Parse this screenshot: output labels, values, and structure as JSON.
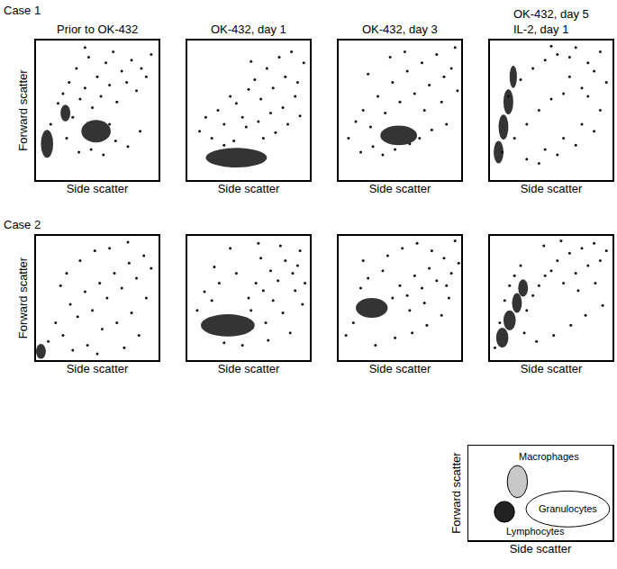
{
  "chart_data": [
    {
      "type": "scatter",
      "case": "Case 1",
      "title": "Prior to OK-432",
      "x_label": "Side scatter",
      "y_label": "Forward scatter",
      "xlim": [
        0,
        100
      ],
      "ylim": [
        0,
        100
      ],
      "tick_labels": false,
      "color": "#111111",
      "x": [
        12,
        18,
        22,
        27,
        30,
        33,
        36,
        40,
        43,
        46,
        50,
        53,
        57,
        60,
        63,
        66,
        70,
        74,
        78,
        82,
        86,
        90,
        94,
        35,
        45,
        55,
        65,
        75,
        85,
        25,
        40,
        60
      ],
      "y": [
        40,
        55,
        62,
        70,
        45,
        80,
        58,
        66,
        88,
        52,
        74,
        60,
        84,
        68,
        92,
        56,
        78,
        70,
        86,
        64,
        80,
        74,
        90,
        20,
        22,
        18,
        28,
        24,
        35,
        30,
        95,
        40
      ],
      "clusters": [
        {
          "x": 9,
          "y": 26,
          "rx": 5,
          "ry": 10
        },
        {
          "x": 24,
          "y": 48,
          "rx": 4,
          "ry": 6
        },
        {
          "x": 49,
          "y": 35,
          "rx": 12,
          "ry": 8
        }
      ]
    },
    {
      "type": "scatter",
      "title": "OK-432, day 1",
      "x_label": "Side scatter",
      "xlim": [
        0,
        100
      ],
      "ylim": [
        0,
        100
      ],
      "tick_labels": false,
      "color": "#111111",
      "x": [
        10,
        15,
        20,
        25,
        30,
        35,
        40,
        45,
        50,
        55,
        60,
        65,
        70,
        75,
        80,
        85,
        90,
        95,
        48,
        58,
        68,
        78,
        88,
        38,
        62,
        72,
        82,
        92,
        30,
        52
      ],
      "y": [
        35,
        45,
        30,
        50,
        40,
        60,
        55,
        45,
        65,
        72,
        58,
        80,
        66,
        88,
        74,
        92,
        70,
        84,
        38,
        42,
        48,
        52,
        60,
        28,
        30,
        34,
        40,
        46,
        25,
        85
      ],
      "clusters": [
        {
          "x": 40,
          "y": 16,
          "rx": 25,
          "ry": 7
        }
      ]
    },
    {
      "type": "scatter",
      "title": "OK-432, day 3",
      "x_label": "Side scatter",
      "xlim": [
        0,
        100
      ],
      "ylim": [
        0,
        100
      ],
      "tick_labels": false,
      "color": "#111111",
      "x": [
        8,
        14,
        20,
        26,
        32,
        38,
        44,
        50,
        56,
        62,
        68,
        74,
        80,
        86,
        92,
        97,
        18,
        28,
        36,
        46,
        58,
        66,
        76,
        88,
        24,
        42,
        54,
        70,
        84,
        95
      ],
      "y": [
        30,
        42,
        50,
        38,
        60,
        48,
        70,
        56,
        78,
        62,
        84,
        68,
        90,
        74,
        80,
        64,
        20,
        24,
        18,
        22,
        26,
        30,
        36,
        40,
        76,
        88,
        92,
        50,
        56,
        95
      ],
      "clusters": [
        {
          "x": 49,
          "y": 32,
          "rx": 15,
          "ry": 7
        }
      ]
    },
    {
      "type": "scatter",
      "title": "OK-432, day 5\nIL-2, day 1",
      "x_label": "Side scatter",
      "xlim": [
        0,
        100
      ],
      "ylim": [
        0,
        100
      ],
      "tick_labels": false,
      "color": "#111111",
      "x": [
        10,
        15,
        20,
        25,
        30,
        35,
        40,
        45,
        50,
        55,
        60,
        65,
        70,
        75,
        80,
        85,
        90,
        95,
        30,
        45,
        60,
        75,
        90,
        40,
        55,
        70,
        85,
        50,
        65,
        80
      ],
      "y": [
        20,
        60,
        30,
        72,
        40,
        80,
        50,
        86,
        58,
        90,
        62,
        74,
        95,
        66,
        84,
        78,
        92,
        70,
        15,
        22,
        30,
        40,
        50,
        12,
        18,
        25,
        35,
        96,
        88,
        60
      ],
      "clusters": [
        {
          "x": 7,
          "y": 20,
          "rx": 4,
          "ry": 8
        },
        {
          "x": 11,
          "y": 38,
          "rx": 4,
          "ry": 9
        },
        {
          "x": 15,
          "y": 56,
          "rx": 4,
          "ry": 9
        },
        {
          "x": 19,
          "y": 74,
          "rx": 3,
          "ry": 8
        }
      ]
    },
    {
      "type": "scatter",
      "case": "Case 2",
      "x_label": "Side scatter",
      "y_label": "Forward scatter",
      "xlim": [
        0,
        100
      ],
      "ylim": [
        0,
        100
      ],
      "tick_labels": false,
      "color": "#111111",
      "x": [
        10,
        16,
        22,
        28,
        34,
        40,
        46,
        52,
        58,
        64,
        70,
        76,
        82,
        88,
        94,
        20,
        30,
        42,
        54,
        66,
        78,
        90,
        36,
        48,
        60,
        72,
        84,
        25,
        50,
        75
      ],
      "y": [
        15,
        30,
        20,
        45,
        35,
        55,
        40,
        62,
        50,
        70,
        58,
        78,
        66,
        84,
        74,
        60,
        8,
        12,
        25,
        30,
        38,
        50,
        80,
        88,
        90,
        10,
        20,
        70,
        5,
        95
      ],
      "clusters": [
        {
          "x": 4,
          "y": 7,
          "rx": 4,
          "ry": 6
        }
      ]
    },
    {
      "type": "scatter",
      "x_label": "Side scatter",
      "xlim": [
        0,
        100
      ],
      "ylim": [
        0,
        100
      ],
      "tick_labels": false,
      "color": "#111111",
      "x": [
        8,
        14,
        20,
        26,
        50,
        56,
        62,
        68,
        74,
        80,
        86,
        92,
        40,
        60,
        76,
        90,
        30,
        45,
        66,
        84,
        52,
        70,
        88,
        96,
        35,
        58,
        78,
        94,
        22,
        64
      ],
      "y": [
        40,
        55,
        48,
        62,
        50,
        62,
        56,
        72,
        64,
        80,
        70,
        88,
        70,
        82,
        92,
        76,
        14,
        12,
        16,
        22,
        40,
        48,
        56,
        62,
        90,
        94,
        38,
        45,
        75,
        30
      ],
      "clusters": [
        {
          "x": 33,
          "y": 28,
          "rx": 22,
          "ry": 9
        }
      ]
    },
    {
      "type": "scatter",
      "x_label": "Side scatter",
      "xlim": [
        0,
        100
      ],
      "ylim": [
        0,
        100
      ],
      "tick_labels": false,
      "color": "#111111",
      "x": [
        6,
        12,
        18,
        24,
        44,
        50,
        56,
        62,
        68,
        74,
        80,
        86,
        92,
        98,
        40,
        52,
        64,
        76,
        88,
        30,
        46,
        60,
        72,
        84,
        20,
        36,
        58,
        70,
        90,
        95
      ],
      "y": [
        20,
        30,
        58,
        66,
        50,
        60,
        52,
        68,
        58,
        74,
        64,
        82,
        70,
        78,
        84,
        90,
        94,
        88,
        60,
        12,
        18,
        22,
        28,
        36,
        80,
        72,
        40,
        46,
        50,
        96
      ],
      "clusters": [
        {
          "x": 27,
          "y": 42,
          "rx": 13,
          "ry": 8
        }
      ]
    },
    {
      "type": "scatter",
      "x_label": "Side scatter",
      "xlim": [
        0,
        100
      ],
      "ylim": [
        0,
        100
      ],
      "tick_labels": false,
      "color": "#111111",
      "x": [
        4,
        8,
        12,
        16,
        20,
        25,
        30,
        35,
        40,
        45,
        50,
        55,
        60,
        65,
        70,
        75,
        80,
        85,
        90,
        95,
        38,
        52,
        66,
        78,
        92,
        44,
        58,
        72,
        86,
        28
      ],
      "y": [
        10,
        30,
        48,
        60,
        68,
        76,
        40,
        52,
        60,
        68,
        72,
        80,
        62,
        86,
        70,
        90,
        76,
        94,
        80,
        88,
        15,
        20,
        28,
        36,
        44,
        92,
        96,
        56,
        62,
        22
      ],
      "clusters": [
        {
          "x": 10,
          "y": 18,
          "rx": 5,
          "ry": 8
        },
        {
          "x": 16,
          "y": 32,
          "rx": 5,
          "ry": 8
        },
        {
          "x": 22,
          "y": 46,
          "rx": 4,
          "ry": 8
        },
        {
          "x": 27,
          "y": 58,
          "rx": 4,
          "ry": 7
        }
      ]
    },
    {
      "type": "diagram",
      "x_label": "Side scatter",
      "y_label": "Forward scatter",
      "xlim": [
        0,
        100
      ],
      "ylim": [
        0,
        100
      ],
      "tick_labels": false,
      "regions": [
        {
          "name": "Macrophages",
          "x": 34,
          "y": 62,
          "rx": 7,
          "ry": 17,
          "color": "#c8c8c8"
        },
        {
          "name": "Granulocytes",
          "x": 69,
          "y": 33,
          "rx": 29,
          "ry": 19,
          "color": "#ffffff"
        },
        {
          "name": "Lymphocytes",
          "x": 25,
          "y": 30,
          "rx": 7,
          "ry": 11,
          "color": "#222222"
        }
      ]
    }
  ]
}
